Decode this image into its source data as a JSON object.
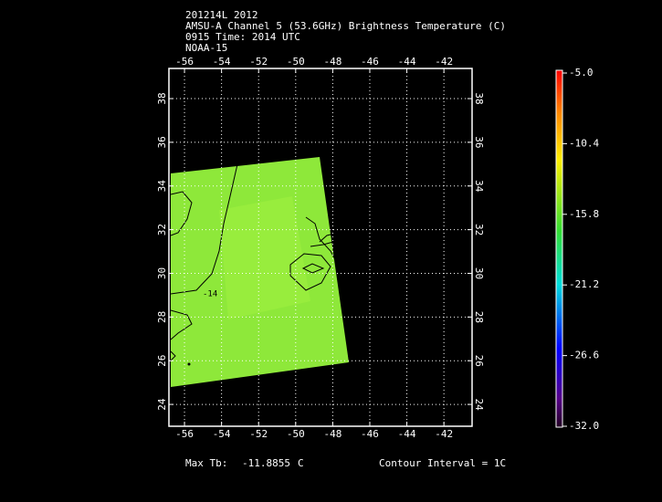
{
  "header": {
    "lines": [
      "201214L 2012",
      "AMSU-A Channel 5 (53.6GHz) Brightness Temperature (C)",
      "0915 Time: 2014 UTC",
      "NOAA-15"
    ]
  },
  "map": {
    "lonlim": [
      -56.84,
      -40.48
    ],
    "latlim": [
      23.0,
      39.38
    ],
    "lon_ticks": [
      -56,
      -54,
      -52,
      -50,
      -48,
      -46,
      -44,
      -42
    ],
    "lat_ticks": [
      24,
      26,
      28,
      30,
      32,
      34,
      36,
      38
    ],
    "contour_label": "-14"
  },
  "colorbar": {
    "range": [
      -32,
      -5
    ],
    "ticks": [
      {
        "value": -5,
        "label": "-5.0"
      },
      {
        "value": -10.4,
        "label": "-10.4"
      },
      {
        "value": -15.8,
        "label": "-15.8"
      },
      {
        "value": -21.2,
        "label": "-21.2"
      },
      {
        "value": -26.6,
        "label": "-26.6"
      },
      {
        "value": -32,
        "label": "-32.0"
      }
    ]
  },
  "footer": {
    "max_label": "Max Tb:",
    "max_value": "-11.8855",
    "max_unit": "C",
    "contour_interval": "Contour Interval = 1C"
  }
}
